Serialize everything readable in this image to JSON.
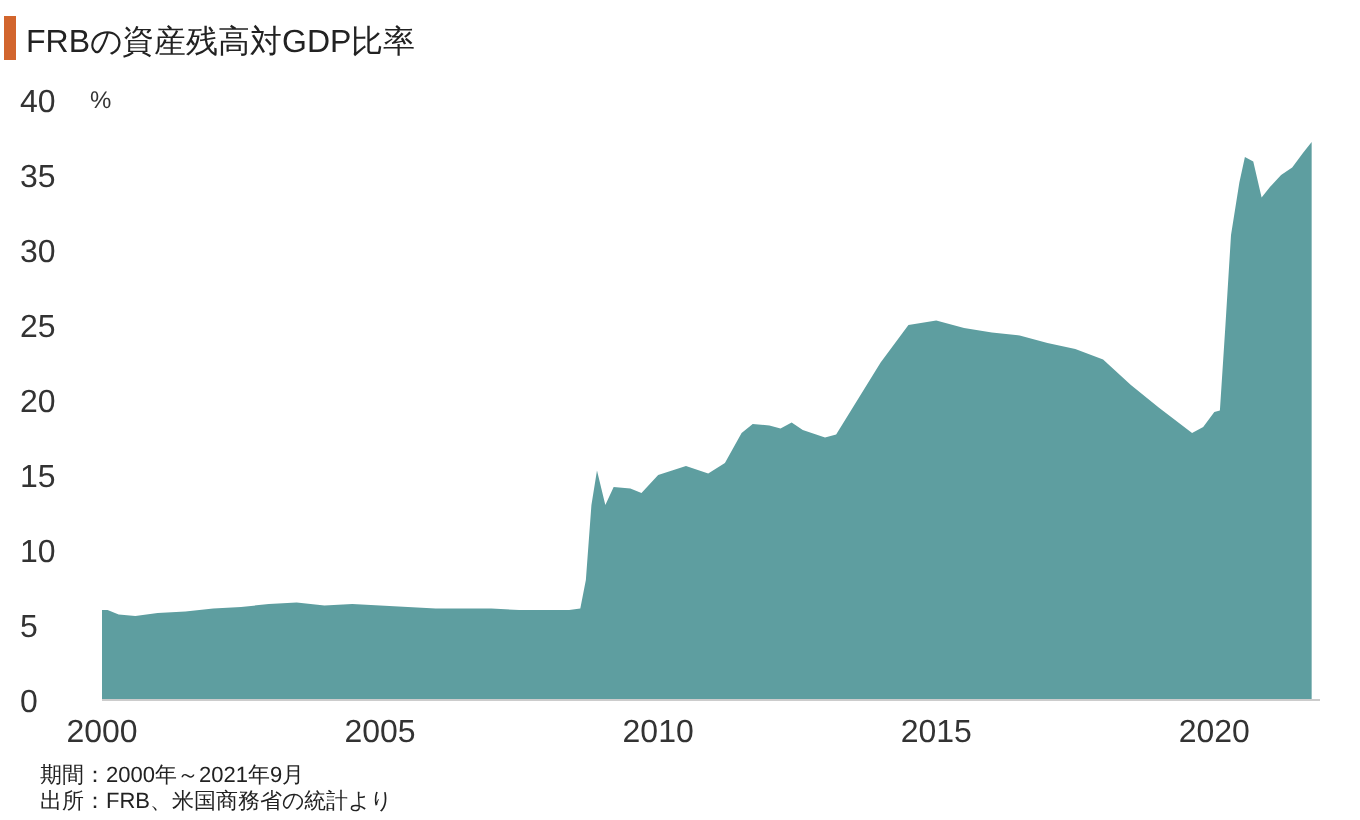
{
  "chart_data": {
    "type": "area",
    "title": "FRBの資産残高対GDP比率",
    "ylabel": "%",
    "annotations": [
      "期間：2000年～2021年9月",
      "出所：FRB、米国商務省の統計より"
    ],
    "series": [
      {
        "color": "#5e9ea0",
        "x": [
          2000.0,
          2000.1,
          2000.3,
          2000.6,
          2001.0,
          2001.5,
          2002.0,
          2002.5,
          2003.0,
          2003.5,
          2004.0,
          2004.5,
          2005.0,
          2005.5,
          2006.0,
          2006.5,
          2007.0,
          2007.5,
          2008.0,
          2008.4,
          2008.6,
          2008.7,
          2008.8,
          2008.9,
          2009.05,
          2009.2,
          2009.5,
          2009.7,
          2010.0,
          2010.5,
          2010.9,
          2011.2,
          2011.5,
          2011.7,
          2012.0,
          2012.2,
          2012.4,
          2012.6,
          2013.0,
          2013.2,
          2013.5,
          2014.0,
          2014.5,
          2015.0,
          2015.5,
          2016.0,
          2016.5,
          2017.0,
          2017.5,
          2018.0,
          2018.5,
          2019.0,
          2019.6,
          2019.8,
          2020.0,
          2020.1,
          2020.2,
          2020.3,
          2020.45,
          2020.55,
          2020.7,
          2020.85,
          2021.0,
          2021.2,
          2021.4,
          2021.6,
          2021.75
        ],
        "values": [
          6.0,
          6.0,
          5.7,
          5.6,
          5.8,
          5.9,
          6.1,
          6.2,
          6.4,
          6.5,
          6.3,
          6.4,
          6.3,
          6.2,
          6.1,
          6.1,
          6.1,
          6.0,
          6.0,
          6.0,
          6.1,
          8.0,
          13.0,
          15.3,
          13.0,
          14.2,
          14.1,
          13.8,
          15.0,
          15.6,
          15.1,
          15.8,
          17.8,
          18.4,
          18.3,
          18.1,
          18.5,
          18.0,
          17.5,
          17.7,
          19.5,
          22.5,
          25.0,
          25.3,
          24.8,
          24.5,
          24.3,
          23.8,
          23.4,
          22.7,
          21.0,
          19.5,
          17.8,
          18.2,
          19.2,
          19.3,
          25.0,
          31.0,
          34.5,
          36.2,
          35.9,
          33.5,
          34.2,
          35.0,
          35.5,
          36.5,
          37.2
        ]
      }
    ],
    "xlim": [
      2000,
      2021.9
    ],
    "xticks": [
      2000,
      2005,
      2010,
      2015,
      2020
    ],
    "ylim": [
      0,
      40
    ],
    "yticks": [
      0,
      5,
      10,
      15,
      20,
      25,
      30,
      35,
      40
    ],
    "grid": false
  }
}
